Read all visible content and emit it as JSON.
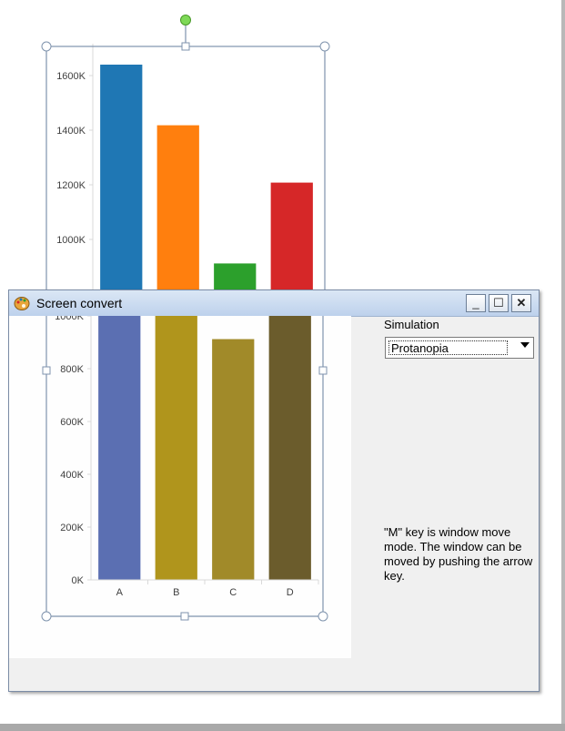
{
  "window": {
    "title": "Screen convert",
    "minimize_glyph": "_",
    "maximize_glyph": "☐",
    "close_glyph": "✕",
    "app_icon": "palette-icon"
  },
  "simulation": {
    "label": "Simulation",
    "selected": "Protanopia",
    "help": "\"M\" key is window move mode. The window can be moved by pushing the arrow key."
  },
  "colors": {
    "original": [
      "#1f77b4",
      "#ff7f0e",
      "#2ca02c",
      "#d62728"
    ],
    "protanopia": [
      "#5b6fb2",
      "#b0951c",
      "#a18a29",
      "#6b5c2c"
    ],
    "selection_handle_rotate": "#7ed957"
  },
  "chart_data": [
    {
      "type": "bar",
      "categories": [
        "A",
        "B",
        "C",
        "D"
      ],
      "values": [
        1640000,
        1418000,
        912000,
        1208000
      ],
      "ylim": [
        0,
        1700000
      ],
      "yticks": [
        0,
        200000,
        400000,
        600000,
        800000,
        1000000,
        1200000,
        1400000,
        1600000
      ],
      "ytick_labels": [
        "0K",
        "200K",
        "400K",
        "600K",
        "800K",
        "1000K",
        "1200K",
        "1400K",
        "1600K"
      ],
      "xlabel": "",
      "ylabel": "",
      "title": "",
      "grid": false,
      "note": "original chart on slide (partially covered by window)"
    },
    {
      "type": "bar",
      "categories": [
        "A",
        "B",
        "C",
        "D"
      ],
      "values": [
        1640000,
        1418000,
        912000,
        1208000
      ],
      "ylim": [
        0,
        1700000
      ],
      "yticks": [
        0,
        200000,
        400000,
        600000,
        800000,
        1000000,
        1200000,
        1400000,
        1600000
      ],
      "ytick_labels": [
        "0K",
        "200K",
        "400K",
        "600K",
        "800K",
        "1000K",
        "1200K",
        "1400K",
        "1600K"
      ],
      "xlabel": "",
      "ylabel": "",
      "title": "",
      "grid": false,
      "note": "protanopia-simulated view shown inside window"
    }
  ]
}
